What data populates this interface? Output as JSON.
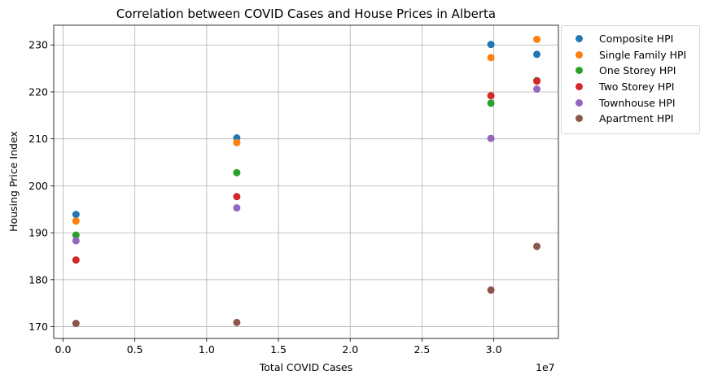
{
  "chart_data": {
    "type": "scatter",
    "title": "Correlation between COVID Cases and House Prices in Alberta",
    "xlabel": "Total COVID Cases",
    "ylabel": "Housing Price Index",
    "x_offset_label": "1e7",
    "x_multiplier": 10000000,
    "xlim": [
      -0.065,
      3.45
    ],
    "ylim": [
      167.5,
      234.2
    ],
    "xticks": [
      0.0,
      0.5,
      1.0,
      1.5,
      2.0,
      2.5,
      3.0
    ],
    "xtick_labels": [
      "0.0",
      "0.5",
      "1.0",
      "1.5",
      "2.0",
      "2.5",
      "3.0"
    ],
    "yticks": [
      170,
      180,
      190,
      200,
      210,
      220,
      230
    ],
    "ytick_labels": [
      "170",
      "180",
      "190",
      "200",
      "210",
      "220",
      "230"
    ],
    "grid": true,
    "legend_position": "outside-upper-right",
    "x": [
      0.09,
      1.21,
      2.98,
      3.3
    ],
    "series": [
      {
        "name": "Composite HPI",
        "color": "#1f77b4",
        "values": [
          193.9,
          210.2,
          230.1,
          228.0
        ]
      },
      {
        "name": "Single Family HPI",
        "color": "#ff7f0e",
        "values": [
          192.5,
          209.2,
          227.3,
          231.2
        ]
      },
      {
        "name": "One Storey HPI",
        "color": "#2ca02c",
        "values": [
          189.5,
          202.8,
          217.6,
          222.4
        ]
      },
      {
        "name": "Two Storey HPI",
        "color": "#d62728",
        "values": [
          184.2,
          197.7,
          219.2,
          222.3
        ]
      },
      {
        "name": "Townhouse HPI",
        "color": "#9467bd",
        "values": [
          188.3,
          195.3,
          210.1,
          220.6
        ]
      },
      {
        "name": "Apartment HPI",
        "color": "#8c564b",
        "values": [
          170.7,
          170.9,
          177.8,
          187.1
        ]
      }
    ]
  }
}
